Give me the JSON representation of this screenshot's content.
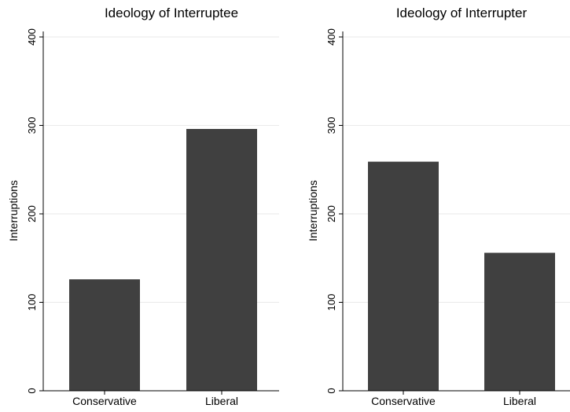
{
  "chart_data": [
    {
      "type": "bar",
      "title": "Ideology of Interruptee",
      "xlabel": "",
      "ylabel": "Interruptions",
      "categories": [
        "Conservative",
        "Liberal"
      ],
      "values": [
        126,
        296
      ],
      "ylim": [
        0,
        400
      ],
      "yticks": [
        "0",
        "100",
        "200",
        "300",
        "400"
      ],
      "grid": true,
      "bar_color": "#404040"
    },
    {
      "type": "bar",
      "title": "Ideology of Interrupter",
      "xlabel": "",
      "ylabel": "Interruptions",
      "categories": [
        "Conservative",
        "Liberal"
      ],
      "values": [
        259,
        156
      ],
      "ylim": [
        0,
        400
      ],
      "yticks": [
        "0",
        "100",
        "200",
        "300",
        "400"
      ],
      "grid": true,
      "bar_color": "#404040"
    }
  ]
}
